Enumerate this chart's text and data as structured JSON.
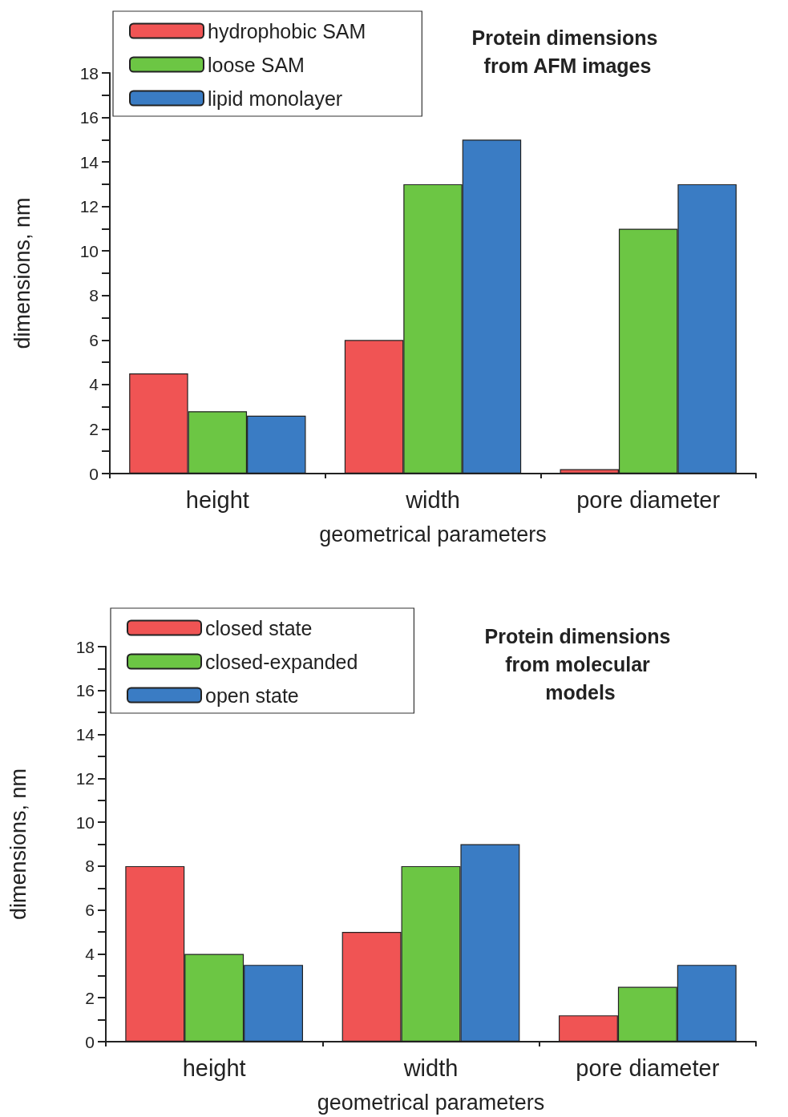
{
  "chart_data": [
    {
      "type": "bar",
      "title": "Protein dimensions from AFM images",
      "xlabel": "geometrical parameters",
      "ylabel": "dimensions, nm",
      "categories": [
        "height",
        "width",
        "pore diameter"
      ],
      "series": [
        {
          "name": "hydrophobic SAM",
          "color": "#f05454",
          "values": [
            4.5,
            6,
            0.2
          ]
        },
        {
          "name": "loose SAM",
          "color": "#6cc644",
          "values": [
            2.8,
            13,
            11
          ]
        },
        {
          "name": "lipid monolayer",
          "color": "#3a7cc4",
          "values": [
            2.6,
            15,
            13
          ]
        }
      ],
      "ylim": [
        0,
        18
      ],
      "yticks": [
        0,
        {
          "value": 1,
          "label": null
        },
        2,
        {
          "value": 3,
          "label": null
        },
        4,
        {
          "value": 5,
          "label": null
        },
        6,
        {
          "value": 7,
          "label": null
        },
        8,
        {
          "value": 9,
          "label": null
        },
        10,
        {
          "value": 11,
          "label": null
        },
        12,
        {
          "value": 13,
          "label": null
        },
        14,
        {
          "value": 15,
          "label": null
        },
        16,
        {
          "value": 17,
          "label": null
        },
        18
      ],
      "grid": false,
      "legend": "top left"
    },
    {
      "type": "bar",
      "title": "Protein dimensions from molecular models",
      "xlabel": "geometrical parameters",
      "ylabel": "dimensions, nm",
      "categories": [
        "height",
        "width",
        "pore diameter"
      ],
      "series": [
        {
          "name": "closed state",
          "color": "#f05454",
          "values": [
            8,
            5,
            1.2
          ]
        },
        {
          "name": "closed-expanded",
          "color": "#6cc644",
          "values": [
            4,
            8,
            2.5
          ]
        },
        {
          "name": "open state",
          "color": "#3a7cc4",
          "values": [
            3.5,
            9,
            3.5
          ]
        }
      ],
      "ylim": [
        0,
        18
      ],
      "yticks": [
        0,
        {
          "value": 1,
          "label": null
        },
        2,
        {
          "value": 3,
          "label": null
        },
        4,
        {
          "value": 5,
          "label": null
        },
        6,
        {
          "value": 7,
          "label": null
        },
        8,
        {
          "value": 9,
          "label": null
        },
        10,
        {
          "value": 11,
          "label": null
        },
        12,
        {
          "value": 13,
          "label": null
        },
        14,
        {
          "value": 15,
          "label": null
        },
        16,
        {
          "value": 17,
          "label": null
        },
        18
      ],
      "grid": false,
      "legend": "top left"
    }
  ]
}
